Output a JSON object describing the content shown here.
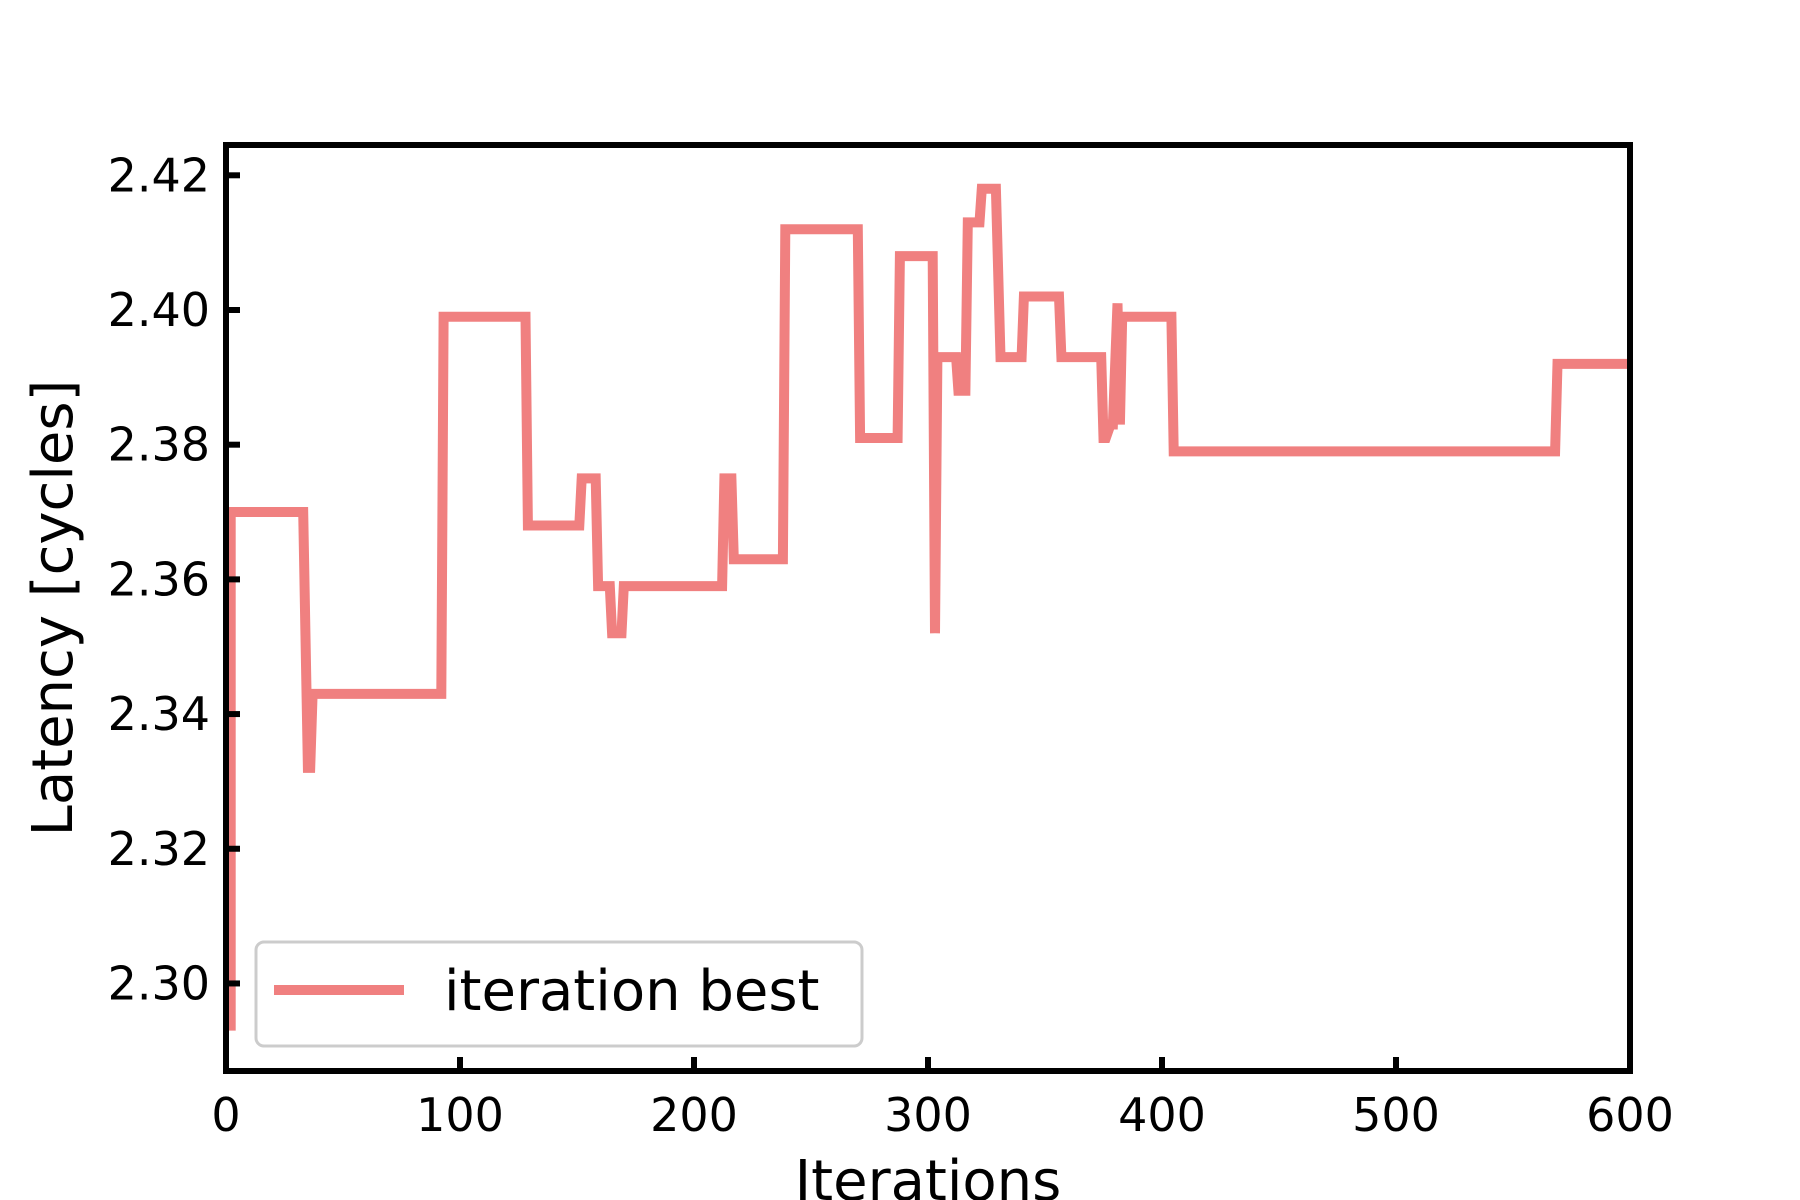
{
  "chart_data": {
    "type": "line",
    "title": "",
    "xlabel": "Iterations",
    "ylabel": "Latency [cycles]",
    "xlim": [
      0,
      600
    ],
    "ylim": [
      2.287,
      2.4245
    ],
    "xticks": [
      0,
      100,
      200,
      300,
      400,
      500,
      600
    ],
    "xtick_labels": [
      "0",
      "100",
      "200",
      "300",
      "400",
      "500",
      "600"
    ],
    "yticks": [
      2.3,
      2.32,
      2.34,
      2.36,
      2.38,
      2.4,
      2.42
    ],
    "ytick_labels": [
      "2.30",
      "2.32",
      "2.34",
      "2.36",
      "2.38",
      "2.40",
      "2.42"
    ],
    "grid": false,
    "legend_position": "lower-left",
    "colors": {
      "line": "#f08080",
      "axes": "#000000",
      "legend_border": "#cccccc"
    },
    "series": [
      {
        "name": "iteration best",
        "x": [
          2,
          2,
          2,
          33,
          35,
          36,
          37,
          38,
          92,
          93,
          128,
          129,
          151,
          152,
          158,
          159,
          164,
          165,
          169,
          170,
          211,
          212,
          213,
          216,
          217,
          238,
          239,
          270,
          271,
          287,
          288,
          302,
          303,
          304,
          305,
          310,
          312,
          313,
          316,
          317,
          322,
          323,
          324,
          328,
          329,
          331,
          340,
          341,
          356,
          357,
          374,
          375,
          376,
          378,
          379,
          381,
          382,
          383,
          384,
          385,
          404,
          405,
          568,
          569,
          600
        ],
        "y": [
          2.293,
          2.37,
          2.37,
          2.37,
          2.332,
          2.332,
          2.343,
          2.343,
          2.343,
          2.399,
          2.399,
          2.368,
          2.368,
          2.375,
          2.375,
          2.359,
          2.359,
          2.352,
          2.352,
          2.359,
          2.359,
          2.359,
          2.375,
          2.375,
          2.363,
          2.363,
          2.412,
          2.412,
          2.381,
          2.381,
          2.408,
          2.408,
          2.352,
          2.393,
          2.393,
          2.393,
          2.393,
          2.388,
          2.388,
          2.413,
          2.413,
          2.418,
          2.418,
          2.418,
          2.418,
          2.393,
          2.393,
          2.402,
          2.402,
          2.393,
          2.393,
          2.381,
          2.381,
          2.383,
          2.383,
          2.401,
          2.383,
          2.399,
          2.399,
          2.399,
          2.399,
          2.379,
          2.379,
          2.392,
          2.392
        ]
      }
    ]
  }
}
